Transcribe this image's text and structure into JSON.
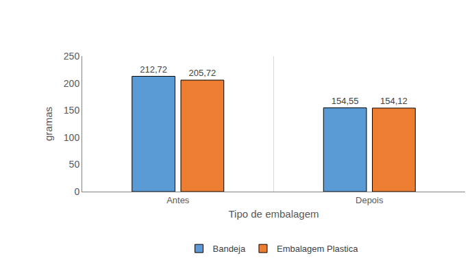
{
  "chart_data": {
    "type": "bar",
    "x_label": "Tipo de embalagem",
    "y_label": "gramas",
    "categories": [
      "Antes",
      "Depois"
    ],
    "series": [
      {
        "name": "Bandeja",
        "color": "#5b9bd5",
        "values": [
          212.72,
          154.55
        ],
        "value_labels": [
          "212,72",
          "154,55"
        ]
      },
      {
        "name": "Embalagem Plastica",
        "color": "#ed7d31",
        "values": [
          205.72,
          154.12
        ],
        "value_labels": [
          "205,72",
          "154,12"
        ]
      }
    ],
    "ylim": [
      0,
      250
    ],
    "yticks": [
      0,
      50,
      100,
      150,
      200,
      250
    ],
    "grid": false,
    "legend": "bottom",
    "data_labels": true
  }
}
